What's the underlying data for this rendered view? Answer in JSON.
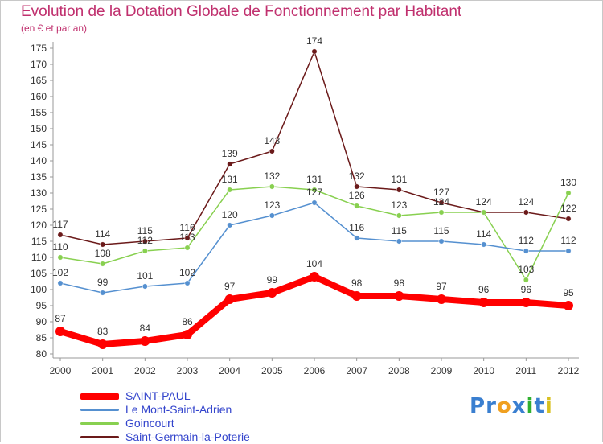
{
  "chart_data": {
    "type": "line",
    "title": "Evolution de la Dotation Globale de Fonctionnement par Habitant",
    "subtitle": "(en € et par an)",
    "x": [
      "2000",
      "2001",
      "2002",
      "2003",
      "2004",
      "2005",
      "2006",
      "2007",
      "2008",
      "2009",
      "2010",
      "2011",
      "2012"
    ],
    "ylim": [
      80,
      175
    ],
    "yticks": [
      80,
      85,
      90,
      95,
      100,
      105,
      110,
      115,
      120,
      125,
      130,
      135,
      140,
      145,
      150,
      155,
      160,
      165,
      170,
      175
    ],
    "grid": false,
    "legend_position": "bottom-left",
    "series": [
      {
        "name": "Saint-Germain-la-Poterie",
        "color": "#6b1a1a",
        "values": [
          117,
          114,
          115,
          116,
          139,
          143,
          174,
          132,
          131,
          127,
          124,
          124,
          122
        ]
      },
      {
        "name": "Goincourt",
        "color": "#88d050",
        "values": [
          110,
          108,
          112,
          113,
          131,
          132,
          131,
          126,
          123,
          124,
          124,
          103,
          130
        ]
      },
      {
        "name": "Le Mont-Saint-Adrien",
        "color": "#5590d0",
        "values": [
          102,
          99,
          101,
          102,
          120,
          123,
          127,
          116,
          115,
          115,
          114,
          112,
          112
        ]
      },
      {
        "name": "SAINT-PAUL",
        "color": "#ff0000",
        "values": [
          87,
          83,
          84,
          86,
          97,
          99,
          104,
          98,
          98,
          97,
          96,
          96,
          95
        ]
      }
    ],
    "legend": [
      "SAINT-PAUL",
      "Le Mont-Saint-Adrien",
      "Goincourt",
      "Saint-Germain-la-Poterie"
    ]
  },
  "logo": {
    "letters": [
      "P",
      "r",
      "o",
      "x",
      "i",
      "t",
      "i"
    ],
    "colors": [
      "#3a7fd0",
      "#3a7fd0",
      "#f0a020",
      "#3a7fd0",
      "#30b030",
      "#3a7fd0",
      "#d8c020"
    ]
  }
}
